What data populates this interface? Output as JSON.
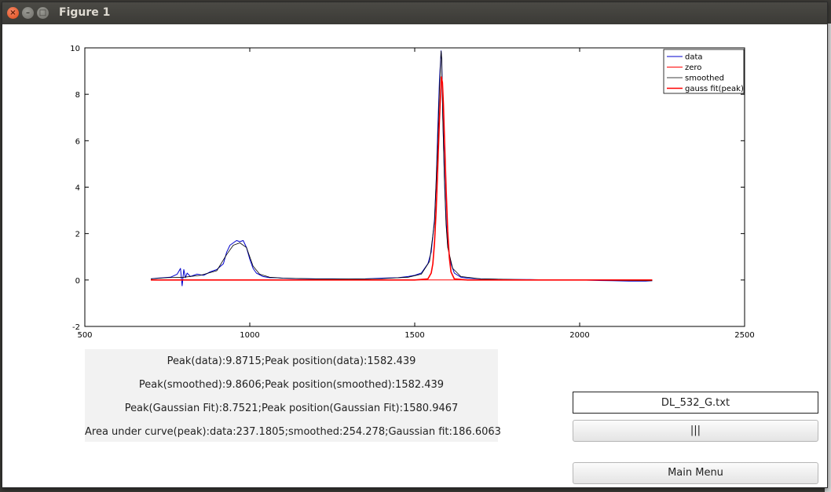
{
  "window": {
    "title": "Figure 1"
  },
  "info": {
    "line1": "Peak(data):9.8715;Peak position(data):1582.439",
    "line2": "Peak(smoothed):9.8606;Peak position(smoothed):1582.439",
    "line3": "Peak(Gaussian Fit):8.7521;Peak position(Gaussian Fit):1580.9467",
    "line4": "Area under curve(peak):data:237.1805;smoothed:254.278;Gaussian fit:186.6063"
  },
  "controls": {
    "file_name": "DL_532_G.txt",
    "bars_button_label": "|||",
    "main_menu_label": "Main Menu"
  },
  "chart_data": {
    "type": "line",
    "title": "",
    "xlabel": "",
    "ylabel": "",
    "xlim": [
      500,
      2500
    ],
    "ylim": [
      -2,
      10
    ],
    "x_ticks": [
      500,
      1000,
      1500,
      2000,
      2500
    ],
    "y_ticks": [
      -2,
      0,
      2,
      4,
      6,
      8,
      10
    ],
    "x_tick_labels": [
      "500",
      "1000",
      "1500",
      "2000",
      "2500"
    ],
    "y_tick_labels": [
      "-2",
      "0",
      "2",
      "4",
      "6",
      "8",
      "10"
    ],
    "legend_position": "top-right",
    "grid": false,
    "series": [
      {
        "name": "data",
        "color": "#0000cc",
        "x": [
          700,
          720,
          740,
          760,
          780,
          790,
          795,
          800,
          805,
          810,
          820,
          840,
          860,
          880,
          900,
          920,
          930,
          940,
          950,
          960,
          970,
          980,
          990,
          1000,
          1010,
          1020,
          1040,
          1060,
          1080,
          1100,
          1150,
          1200,
          1250,
          1300,
          1350,
          1400,
          1450,
          1480,
          1500,
          1520,
          1540,
          1550,
          1560,
          1565,
          1570,
          1575,
          1580,
          1582,
          1585,
          1590,
          1595,
          1600,
          1610,
          1620,
          1640,
          1660,
          1700,
          1750,
          1800,
          1850,
          1900,
          1950,
          2000,
          2050,
          2100,
          2150,
          2200,
          2220
        ],
        "y": [
          0.05,
          0.08,
          0.1,
          0.12,
          0.25,
          0.5,
          -0.25,
          0.45,
          0.1,
          0.3,
          0.15,
          0.25,
          0.2,
          0.35,
          0.45,
          0.7,
          1.2,
          1.5,
          1.6,
          1.7,
          1.65,
          1.7,
          1.4,
          0.9,
          0.5,
          0.3,
          0.15,
          0.1,
          0.1,
          0.08,
          0.06,
          0.05,
          0.05,
          0.04,
          0.05,
          0.08,
          0.1,
          0.15,
          0.2,
          0.3,
          0.7,
          1.2,
          2.6,
          4.2,
          6.5,
          8.6,
          9.87,
          9.5,
          7.2,
          4.5,
          2.6,
          1.5,
          0.7,
          0.3,
          0.12,
          0.08,
          0.05,
          0.03,
          0.02,
          0.02,
          0.0,
          0.0,
          0.0,
          -0.02,
          -0.03,
          -0.05,
          -0.05,
          -0.03
        ]
      },
      {
        "name": "zero",
        "color": "#ff0000",
        "x": [
          700,
          2220
        ],
        "y": [
          0,
          0
        ]
      },
      {
        "name": "smoothed",
        "color": "#000000",
        "x": [
          700,
          750,
          800,
          850,
          900,
          930,
          950,
          970,
          990,
          1010,
          1030,
          1060,
          1100,
          1200,
          1300,
          1400,
          1480,
          1520,
          1545,
          1560,
          1570,
          1575,
          1580,
          1582,
          1585,
          1590,
          1595,
          1600,
          1615,
          1640,
          1700,
          1800,
          1900,
          2000,
          2100,
          2220
        ],
        "y": [
          0.05,
          0.1,
          0.12,
          0.2,
          0.4,
          1.1,
          1.5,
          1.6,
          1.4,
          0.6,
          0.25,
          0.12,
          0.08,
          0.05,
          0.04,
          0.06,
          0.12,
          0.25,
          0.8,
          2.5,
          6.0,
          8.2,
          9.86,
          9.5,
          7.0,
          4.3,
          2.4,
          1.4,
          0.5,
          0.15,
          0.05,
          0.02,
          0.0,
          0.0,
          -0.02,
          -0.03
        ]
      },
      {
        "name": "gauss fit(peak)",
        "color": "#ff0000",
        "x": [
          700,
          1400,
          1500,
          1540,
          1550,
          1555,
          1560,
          1565,
          1570,
          1575,
          1578,
          1581,
          1584,
          1587,
          1590,
          1595,
          1600,
          1605,
          1610,
          1620,
          1660,
          1750,
          2220
        ],
        "y": [
          0,
          0,
          0,
          0.05,
          0.3,
          0.7,
          1.6,
          3.0,
          4.9,
          6.9,
          7.9,
          8.75,
          8.5,
          7.6,
          6.2,
          4.0,
          2.1,
          0.95,
          0.35,
          0.05,
          0,
          0,
          0
        ]
      }
    ]
  }
}
